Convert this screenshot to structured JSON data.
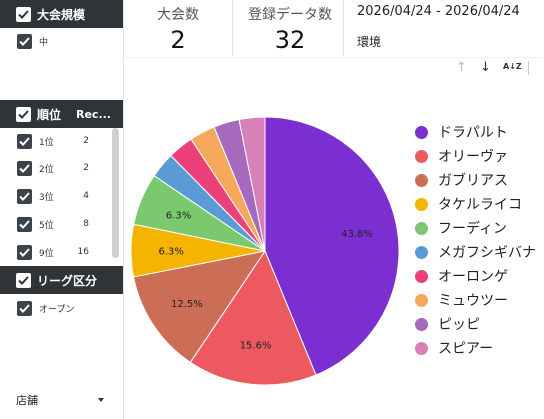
{
  "sidebar": {
    "tournament_scale": {
      "header": "大会規模",
      "items": [
        {
          "label": "中"
        }
      ]
    },
    "rank": {
      "header": "順位",
      "rec_header": "Rec...",
      "items": [
        {
          "label": "1位",
          "count": "2"
        },
        {
          "label": "2位",
          "count": "2"
        },
        {
          "label": "3位",
          "count": "4"
        },
        {
          "label": "5位",
          "count": "8"
        },
        {
          "label": "9位",
          "count": "16"
        }
      ]
    },
    "league": {
      "header": "リーグ区分",
      "items": [
        {
          "label": "オープン"
        }
      ]
    },
    "store_select": {
      "label": "店舗"
    }
  },
  "kpis": {
    "tournaments": {
      "label": "大会数",
      "value": "2"
    },
    "records": {
      "label": "登録データ数",
      "value": "32"
    }
  },
  "date_range": "2026/04/24 - 2026/04/24",
  "env_label": "環境",
  "sort_icons": {
    "ascending": "↑",
    "descending": "↓",
    "az": "A↓Z"
  },
  "chart_data": {
    "type": "pie",
    "slices": [
      {
        "label": "ドラパルト",
        "value": 43.8,
        "color": "#7b2fd1",
        "display": "43.8%"
      },
      {
        "label": "オリーヴァ",
        "value": 15.6,
        "color": "#ec5a5f",
        "display": "15.6%"
      },
      {
        "label": "ガブリアス",
        "value": 12.5,
        "color": "#cc6e55",
        "display": "12.5%"
      },
      {
        "label": "タケルライコ",
        "value": 6.3,
        "color": "#f4b400",
        "display": "6.3%"
      },
      {
        "label": "フーディン",
        "value": 6.3,
        "color": "#7bc96f",
        "display": "6.3%"
      },
      {
        "label": "メガフシギバナ",
        "value": 3.1,
        "color": "#5b9bd5",
        "display": ""
      },
      {
        "label": "オーロンゲ",
        "value": 3.1,
        "color": "#ec407a",
        "display": ""
      },
      {
        "label": "ミュウツー",
        "value": 3.1,
        "color": "#f6a85c",
        "display": ""
      },
      {
        "label": "ピッピ",
        "value": 3.1,
        "color": "#a569bd",
        "display": ""
      },
      {
        "label": "スピアー",
        "value": 3.1,
        "color": "#d880b8",
        "display": ""
      }
    ],
    "legend_placement": "right"
  }
}
